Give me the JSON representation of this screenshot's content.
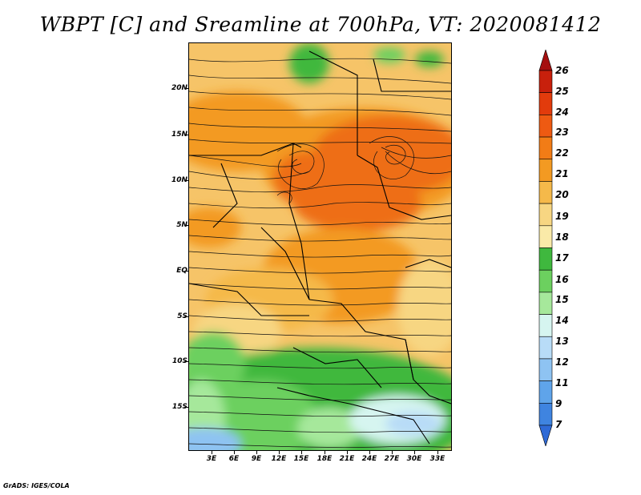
{
  "title": "WBPT [C] and Sreamline at 700hPa, VT: 2020081412",
  "credit": "GrADS: IGES/COLA",
  "map": {
    "lon_range": [
      0,
      35
    ],
    "lat_range": [
      -20,
      24
    ],
    "lat_ticks": [
      {
        "value": 20,
        "label": "20N"
      },
      {
        "value": 15,
        "label": "15N"
      },
      {
        "value": 10,
        "label": "10N"
      },
      {
        "value": 5,
        "label": "5N"
      },
      {
        "value": 0,
        "label": "EQ"
      },
      {
        "value": -5,
        "label": "5S"
      },
      {
        "value": -10,
        "label": "10S"
      },
      {
        "value": -15,
        "label": "15S"
      }
    ],
    "lon_ticks": [
      {
        "value": 3,
        "label": "3E"
      },
      {
        "value": 6,
        "label": "6E"
      },
      {
        "value": 9,
        "label": "9E"
      },
      {
        "value": 12,
        "label": "12E"
      },
      {
        "value": 15,
        "label": "15E"
      },
      {
        "value": 18,
        "label": "18E"
      },
      {
        "value": 21,
        "label": "21E"
      },
      {
        "value": 24,
        "label": "24E"
      },
      {
        "value": 27,
        "label": "27E"
      },
      {
        "value": 30,
        "label": "30E"
      },
      {
        "value": 33,
        "label": "33E"
      }
    ]
  },
  "colorbar": {
    "levels": [
      "26",
      "25",
      "24",
      "23",
      "22",
      "21",
      "20",
      "19",
      "18",
      "17",
      "16",
      "15",
      "14",
      "13",
      "12",
      "11",
      "9",
      "7"
    ],
    "colors": [
      "#a50f0f",
      "#c8200c",
      "#e23b0c",
      "#ee5a12",
      "#f27c16",
      "#f39a22",
      "#f5b94a",
      "#f7d682",
      "#faeaa8",
      "#3fb83e",
      "#6cd05f",
      "#a6e89b",
      "#d6f5f0",
      "#b8dcf7",
      "#8ec3f2",
      "#5fa4ea",
      "#3f84e0",
      "#2f6ad6"
    ]
  }
}
